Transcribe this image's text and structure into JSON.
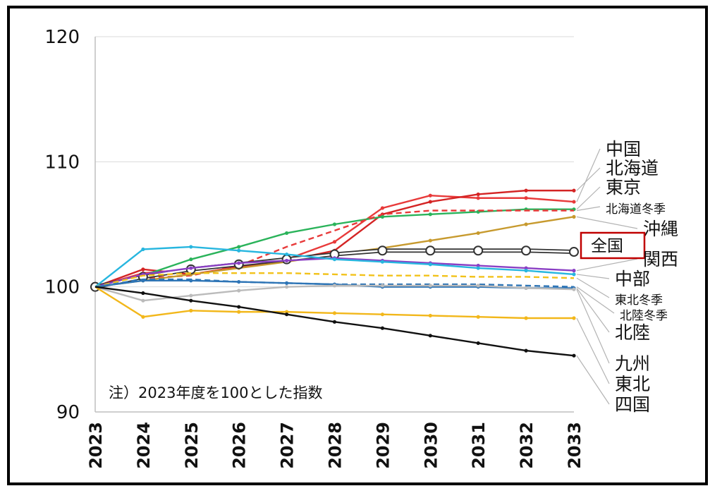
{
  "chart_data": {
    "type": "line",
    "title": "",
    "note": "注）2023年度を100とした指数",
    "x": [
      "2023",
      "2024",
      "2025",
      "2026",
      "2027",
      "2028",
      "2029",
      "2030",
      "2031",
      "2032",
      "2033"
    ],
    "ylim": [
      90,
      120
    ],
    "yticks": [
      "90",
      "100",
      "110",
      "120"
    ],
    "grid": true,
    "series": [
      {
        "name": "中国",
        "color": "#e83a3a",
        "dash": false,
        "markers": "dots",
        "values": [
          100,
          101.1,
          101.4,
          101.8,
          102.2,
          103.6,
          106.3,
          107.3,
          107.1,
          107.1,
          106.8
        ]
      },
      {
        "name": "北海道",
        "color": "#d42424",
        "dash": false,
        "markers": "dots",
        "values": [
          100,
          101.4,
          101.0,
          101.6,
          102.1,
          102.9,
          105.8,
          106.8,
          107.4,
          107.7,
          107.7
        ]
      },
      {
        "name": "東京",
        "color": "#2ab35a",
        "dash": false,
        "markers": "dots",
        "values": [
          100,
          100.9,
          102.2,
          103.2,
          104.3,
          105.0,
          105.6,
          105.8,
          106.0,
          106.2,
          106.2
        ]
      },
      {
        "name": "北海道冬季",
        "color": "#e83a3a",
        "dash": true,
        "markers": "none",
        "values": [
          100,
          100.7,
          100.9,
          101.7,
          103.2,
          104.5,
          105.8,
          106.1,
          106.1,
          106.1,
          106.1
        ]
      },
      {
        "name": "沖縄",
        "color": "#c79a2e",
        "dash": false,
        "markers": "dots",
        "values": [
          100,
          100.5,
          101.0,
          101.5,
          102.0,
          102.6,
          103.1,
          103.7,
          104.3,
          105.0,
          105.6
        ]
      },
      {
        "name": "全国",
        "color": "#555555",
        "dash": false,
        "markers": "circles",
        "values": [
          100,
          100.8,
          101.4,
          101.8,
          102.2,
          102.6,
          102.9,
          102.9,
          102.9,
          102.9,
          102.8
        ]
      },
      {
        "name": "関西",
        "color": "#8a3fc4",
        "dash": false,
        "markers": "dots",
        "values": [
          100,
          101.0,
          101.5,
          101.9,
          102.1,
          102.3,
          102.1,
          101.9,
          101.7,
          101.5,
          101.3
        ]
      },
      {
        "name": "中部",
        "color": "#27b6df",
        "dash": false,
        "markers": "dots",
        "values": [
          100,
          103.0,
          103.2,
          102.9,
          102.6,
          102.2,
          102.0,
          101.8,
          101.5,
          101.3,
          101.0
        ]
      },
      {
        "name": "東北冬季",
        "color": "#f2c21a",
        "dash": true,
        "markers": "none",
        "values": [
          100,
          100.9,
          101.1,
          101.1,
          101.1,
          101.0,
          100.9,
          100.9,
          100.8,
          100.8,
          100.7
        ]
      },
      {
        "name": "北陸冬季",
        "color": "#2e75b6",
        "dash": true,
        "markers": "none",
        "values": [
          100,
          100.6,
          100.6,
          100.4,
          100.3,
          100.2,
          100.2,
          100.2,
          100.2,
          100.1,
          100.0
        ]
      },
      {
        "name": "北陸",
        "color": "#2e75b6",
        "dash": false,
        "markers": "dots",
        "values": [
          100,
          100.5,
          100.5,
          100.4,
          100.3,
          100.2,
          100.0,
          100.0,
          100.0,
          99.9,
          99.9
        ]
      },
      {
        "name": "九州",
        "color": "#bbbbbb",
        "dash": false,
        "markers": "dots",
        "values": [
          100,
          98.9,
          99.3,
          99.7,
          100.0,
          100.1,
          100.1,
          100.1,
          100.1,
          99.9,
          99.8
        ]
      },
      {
        "name": "東北",
        "color": "#f2b71a",
        "dash": false,
        "markers": "dots",
        "values": [
          100,
          97.6,
          98.1,
          98.0,
          98.0,
          97.9,
          97.8,
          97.7,
          97.6,
          97.5,
          97.5
        ]
      },
      {
        "name": "四国",
        "color": "#111111",
        "dash": false,
        "markers": "dots",
        "values": [
          100,
          99.5,
          98.9,
          98.4,
          97.8,
          97.2,
          96.7,
          96.1,
          95.5,
          94.9,
          94.5
        ]
      }
    ]
  }
}
